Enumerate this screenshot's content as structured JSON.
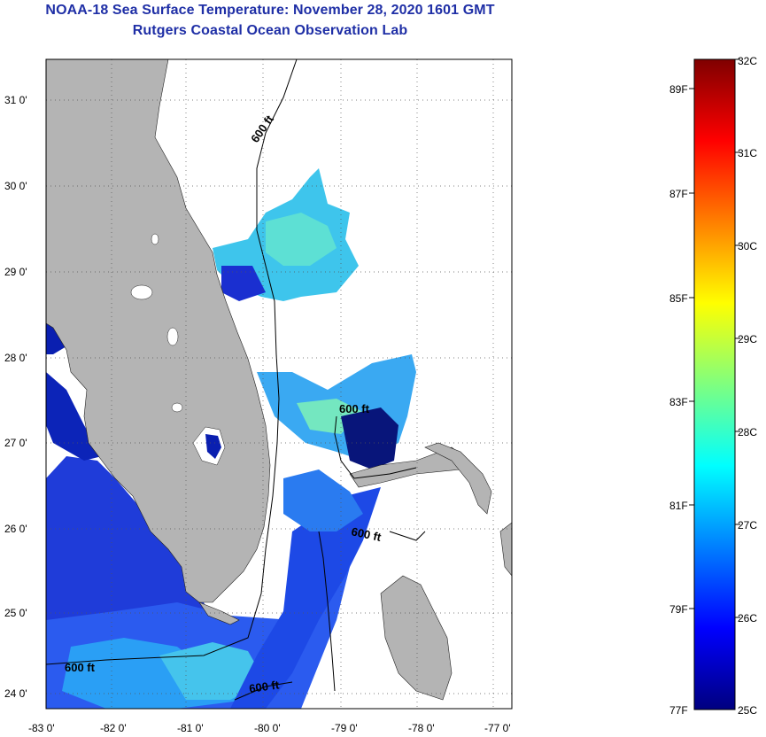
{
  "header": {
    "title": "NOAA-18 Sea Surface Temperature:  November 28, 2020 1601 GMT",
    "subtitle": "Rutgers Coastal Ocean Observation Lab"
  },
  "map": {
    "lat_labels": [
      "31 0'",
      "30 0'",
      "29 0'",
      "28 0'",
      "27 0'",
      "26 0'",
      "25 0'",
      "24 0'"
    ],
    "lon_labels": [
      "-83 0'",
      "-82 0'",
      "-81 0'",
      "-80 0'",
      "-79 0'",
      "-78 0'",
      "-77 0'"
    ],
    "contour_labels": [
      "600 ft",
      "600 ft",
      "600 ft",
      "600 ft",
      "600 ft"
    ],
    "colors": {
      "land": "#b4b4b4",
      "frame": "#000000",
      "grid": "#555555"
    }
  },
  "colorbar": {
    "range_c": [
      25,
      32
    ],
    "celsius_labels": [
      "32C",
      "31C",
      "30C",
      "29C",
      "28C",
      "27C",
      "26C",
      "25C"
    ],
    "fahrenheit_labels": [
      "89F",
      "87F",
      "85F",
      "83F",
      "81F",
      "79F",
      "77F"
    ],
    "colormap": "jet",
    "colors": [
      "#00007f",
      "#0000ff",
      "#007fff",
      "#00ffff",
      "#7fff7f",
      "#ffff00",
      "#ff7f00",
      "#ff0000",
      "#7f0000"
    ]
  }
}
